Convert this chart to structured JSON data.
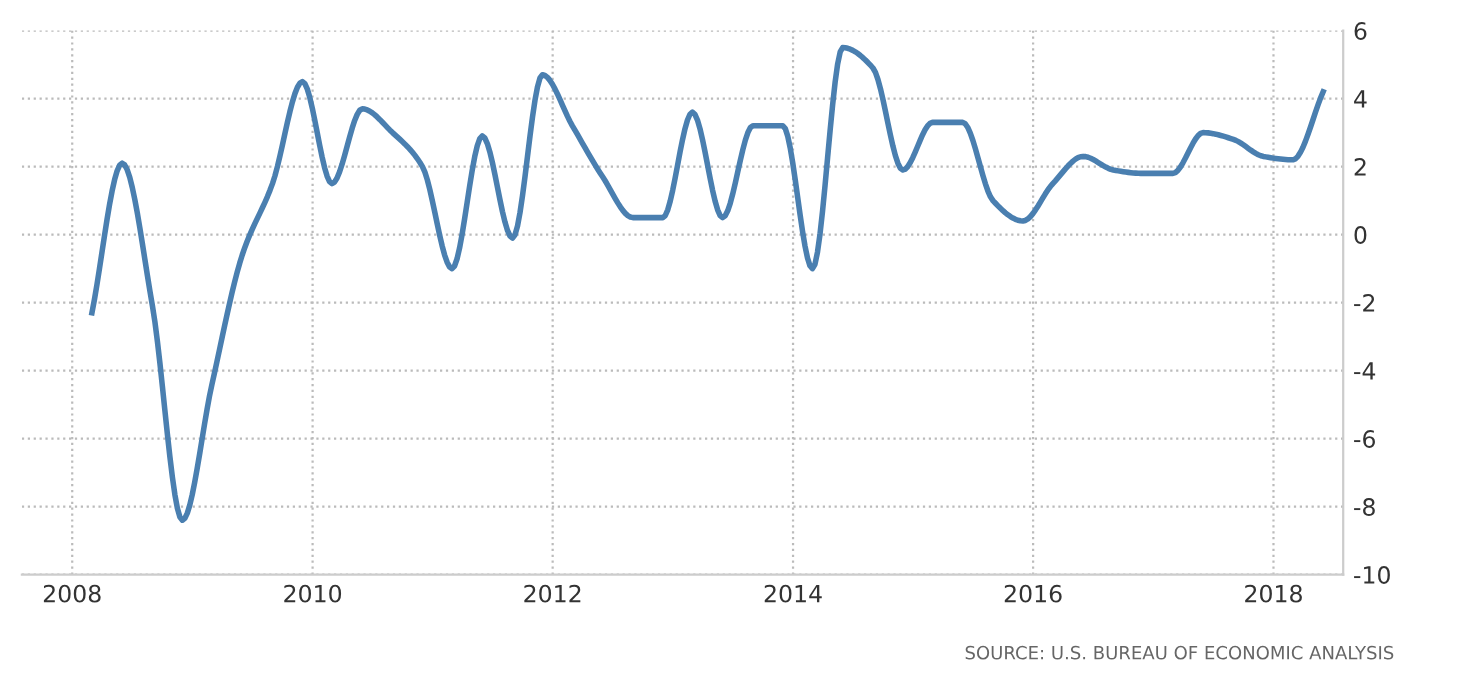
{
  "chart_data": {
    "type": "line",
    "x": [
      "2008-03",
      "2008-06",
      "2008-09",
      "2008-12",
      "2009-03",
      "2009-06",
      "2009-09",
      "2009-12",
      "2010-03",
      "2010-06",
      "2010-09",
      "2010-12",
      "2011-03",
      "2011-06",
      "2011-09",
      "2011-12",
      "2012-03",
      "2012-06",
      "2012-09",
      "2012-12",
      "2013-03",
      "2013-06",
      "2013-09",
      "2013-12",
      "2014-03",
      "2014-06",
      "2014-09",
      "2014-12",
      "2015-03",
      "2015-06",
      "2015-09",
      "2015-12",
      "2016-03",
      "2016-06",
      "2016-09",
      "2016-12",
      "2017-03",
      "2017-06",
      "2017-09",
      "2017-12",
      "2018-03",
      "2018-06"
    ],
    "series": [
      {
        "color": "#4a7fb0",
        "values": [
          -2.3,
          2.1,
          -2.1,
          -8.4,
          -4.4,
          -0.6,
          1.5,
          4.5,
          1.5,
          3.7,
          3.0,
          2.0,
          -1.0,
          2.9,
          -0.1,
          4.7,
          3.2,
          1.7,
          0.5,
          0.5,
          3.6,
          0.5,
          3.2,
          3.2,
          -1.0,
          5.5,
          4.9,
          1.9,
          3.3,
          3.3,
          1.0,
          0.4,
          1.5,
          2.3,
          1.9,
          1.8,
          1.8,
          3.0,
          2.8,
          2.3,
          2.2,
          4.2
        ]
      }
    ],
    "xlim": [
      "2007-08",
      "2018-08"
    ],
    "xticks": [
      "2008",
      "2010",
      "2012",
      "2014",
      "2016",
      "2018"
    ],
    "ylim": [
      -10,
      6
    ],
    "yticks": [
      -10,
      -8,
      -6,
      -4,
      -2,
      0,
      2,
      4,
      6
    ],
    "grid": true,
    "marker": "none",
    "line_style": "solid",
    "annotations": [
      "SOURCE: U.S. BUREAU OF ECONOMIC ANALYSIS"
    ]
  }
}
